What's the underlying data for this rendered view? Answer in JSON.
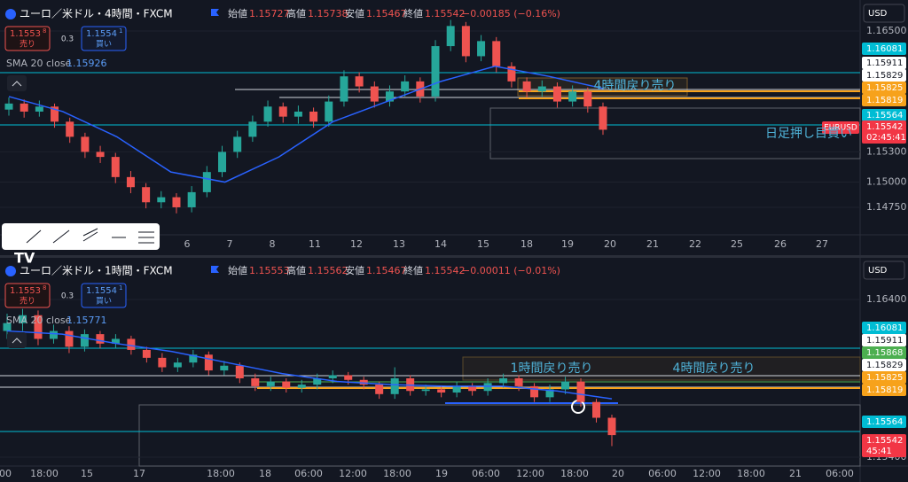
{
  "panels": [
    {
      "symbol_title": "ユーロ／米ドル・4時間・FXCM",
      "ohlc": {
        "open_label": "始値",
        "open": "1.15727",
        "high_label": "高値",
        "high": "1.15738",
        "low_label": "安値",
        "low": "1.15467",
        "close_label": "終値",
        "close": "1.15542",
        "change": "−0.00185 (−0.16%)"
      },
      "sell": {
        "price": "1.1553",
        "pip": "8",
        "label": "売り"
      },
      "spread": "0.3",
      "buy": {
        "price": "1.1554",
        "pip": "1",
        "label": "買い"
      },
      "sma": {
        "label": "SMA 20 close",
        "value": "1.15926"
      },
      "currency": "USD",
      "ylim": [
        1.14477,
        1.16808
      ],
      "price_ticks": [
        {
          "value": 1.165,
          "label": "1.16500"
        },
        {
          "value": 1.153,
          "label": "1.15300"
        },
        {
          "value": 1.15,
          "label": "1.15000"
        },
        {
          "value": 1.1475,
          "label": "1.14750"
        }
      ],
      "price_tags": [
        {
          "label": "1.16081",
          "color": "#00bcd4"
        },
        {
          "label": "1.15911",
          "color": "#ffffff"
        },
        {
          "label": "1.15829",
          "color": "#ffffff"
        },
        {
          "label": "1.15825",
          "color": "#f7a21b"
        },
        {
          "label": "1.15819",
          "color": "#f7a21b"
        },
        {
          "label": "1.15564",
          "color": "#00bcd4"
        }
      ],
      "last_price": "1.15542",
      "countdown": "02:45:41",
      "symbol_tag": "EURUSD",
      "time_labels": [
        "6",
        "7",
        "8",
        "11",
        "12",
        "13",
        "14",
        "15",
        "18",
        "19",
        "20",
        "21",
        "22",
        "25",
        "26",
        "27"
      ],
      "annotations": [
        "4時間戻り売り",
        "日足押し目買い"
      ],
      "candles": [
        [
          1.1572,
          1.1584,
          1.1566,
          1.1578
        ],
        [
          1.1578,
          1.1582,
          1.1564,
          1.157
        ],
        [
          1.157,
          1.1581,
          1.1565,
          1.1575
        ],
        [
          1.1575,
          1.1578,
          1.1554,
          1.156
        ],
        [
          1.156,
          1.1564,
          1.1539,
          1.1545
        ],
        [
          1.1545,
          1.1549,
          1.1524,
          1.153
        ],
        [
          1.153,
          1.1536,
          1.1519,
          1.1525
        ],
        [
          1.1525,
          1.1529,
          1.1499,
          1.1505
        ],
        [
          1.1505,
          1.1511,
          1.1489,
          1.1495
        ],
        [
          1.1495,
          1.1499,
          1.1474,
          1.148
        ],
        [
          1.148,
          1.1491,
          1.1474,
          1.1485
        ],
        [
          1.1485,
          1.1489,
          1.1469,
          1.1475
        ],
        [
          1.1475,
          1.1496,
          1.147,
          1.149
        ],
        [
          1.149,
          1.1516,
          1.1485,
          1.151
        ],
        [
          1.151,
          1.1536,
          1.1505,
          1.153
        ],
        [
          1.153,
          1.1551,
          1.1524,
          1.1545
        ],
        [
          1.1545,
          1.1566,
          1.154,
          1.156
        ],
        [
          1.156,
          1.1581,
          1.1555,
          1.1575
        ],
        [
          1.1575,
          1.1579,
          1.1559,
          1.1565
        ],
        [
          1.1565,
          1.1576,
          1.1558,
          1.157
        ],
        [
          1.157,
          1.1574,
          1.1554,
          1.156
        ],
        [
          1.156,
          1.1586,
          1.1555,
          1.158
        ],
        [
          1.158,
          1.1611,
          1.1575,
          1.1605
        ],
        [
          1.1605,
          1.1609,
          1.1589,
          1.1595
        ],
        [
          1.1595,
          1.16,
          1.1574,
          1.158
        ],
        [
          1.158,
          1.1596,
          1.1575,
          1.159
        ],
        [
          1.159,
          1.1606,
          1.1585,
          1.16
        ],
        [
          1.16,
          1.1604,
          1.1579,
          1.1585
        ],
        [
          1.1585,
          1.1641,
          1.158,
          1.1635
        ],
        [
          1.1635,
          1.1661,
          1.163,
          1.1655
        ],
        [
          1.1655,
          1.1659,
          1.1619,
          1.1625
        ],
        [
          1.1625,
          1.1646,
          1.162,
          1.164
        ],
        [
          1.164,
          1.1644,
          1.1609,
          1.1615
        ],
        [
          1.1615,
          1.1619,
          1.1594,
          1.16
        ],
        [
          1.16,
          1.1604,
          1.1584,
          1.159
        ],
        [
          1.159,
          1.1601,
          1.1585,
          1.1595
        ],
        [
          1.1595,
          1.1599,
          1.1574,
          1.158
        ],
        [
          1.158,
          1.1596,
          1.1575,
          1.159
        ],
        [
          1.159,
          1.1594,
          1.1569,
          1.1575
        ],
        [
          1.1575,
          1.1579,
          1.1547,
          1.1552
        ]
      ],
      "sma_line": [
        1.1585,
        1.157,
        1.1545,
        1.151,
        1.15,
        1.1525,
        1.156,
        1.158,
        1.16,
        1.1615,
        1.1605,
        1.1593
      ]
    },
    {
      "symbol_title": "ユーロ／米ドル・1時間・FXCM",
      "ohlc": {
        "open_label": "始値",
        "open": "1.15553",
        "high_label": "高値",
        "high": "1.15562",
        "low_label": "安値",
        "low": "1.15467",
        "close_label": "終値",
        "close": "1.15542",
        "change": "−0.00011 (−0.01%)"
      },
      "sell": {
        "price": "1.1553",
        "pip": "8",
        "label": "売り"
      },
      "spread": "0.3",
      "buy": {
        "price": "1.1554",
        "pip": "1",
        "label": "買い"
      },
      "sma": {
        "label": "SMA 20 close",
        "value": "1.15771"
      },
      "currency": "USD",
      "ylim": [
        1.15344,
        1.16658
      ],
      "price_ticks": [
        {
          "value": 1.164,
          "label": "1.16400"
        },
        {
          "value": 1.154,
          "label": "1.15400"
        }
      ],
      "price_tags": [
        {
          "label": "1.16081",
          "color": "#00bcd4"
        },
        {
          "label": "1.15911",
          "color": "#ffffff"
        },
        {
          "label": "1.15868",
          "color": "#4caf50"
        },
        {
          "label": "1.15829",
          "color": "#ffffff"
        },
        {
          "label": "1.15825",
          "color": "#f7a21b"
        },
        {
          "label": "1.15819",
          "color": "#f7a21b"
        },
        {
          "label": "1.15564",
          "color": "#00bcd4"
        }
      ],
      "last_price": "1.15542",
      "countdown": "45:41",
      "time_labels": [
        "00",
        "18:00",
        "15",
        "17",
        "18:00",
        "18",
        "06:00",
        "12:00",
        "18:00",
        "19",
        "06:00",
        "12:00",
        "18:00",
        "20",
        "06:00",
        "12:00",
        "18:00",
        "21",
        "06:00"
      ],
      "annotations": [
        "1時間戻り売り",
        "4時間戻り売り"
      ],
      "candles": [
        [
          1.162,
          1.1631,
          1.1615,
          1.1625
        ],
        [
          1.1625,
          1.1634,
          1.162,
          1.163
        ],
        [
          1.163,
          1.1633,
          1.1611,
          1.1615
        ],
        [
          1.1615,
          1.1624,
          1.1612,
          1.162
        ],
        [
          1.162,
          1.1623,
          1.1606,
          1.161
        ],
        [
          1.161,
          1.1621,
          1.1607,
          1.1618
        ],
        [
          1.1618,
          1.162,
          1.1609,
          1.1612
        ],
        [
          1.1612,
          1.1618,
          1.1609,
          1.1615
        ],
        [
          1.1615,
          1.1617,
          1.1605,
          1.1608
        ],
        [
          1.1608,
          1.161,
          1.16,
          1.1603
        ],
        [
          1.1603,
          1.1606,
          1.1594,
          1.1597
        ],
        [
          1.1597,
          1.1603,
          1.1594,
          1.16
        ],
        [
          1.16,
          1.1608,
          1.1597,
          1.1605
        ],
        [
          1.1605,
          1.1607,
          1.1592,
          1.1595
        ],
        [
          1.1595,
          1.1601,
          1.1592,
          1.1598
        ],
        [
          1.1598,
          1.16,
          1.1587,
          1.159
        ],
        [
          1.159,
          1.1593,
          1.1582,
          1.1585
        ],
        [
          1.1585,
          1.1591,
          1.1582,
          1.1588
        ],
        [
          1.1588,
          1.159,
          1.1581,
          1.1584
        ],
        [
          1.1584,
          1.1589,
          1.1581,
          1.1586
        ],
        [
          1.1586,
          1.1593,
          1.1583,
          1.159
        ],
        [
          1.159,
          1.1595,
          1.1587,
          1.1592
        ],
        [
          1.1592,
          1.1594,
          1.1586,
          1.1589
        ],
        [
          1.1589,
          1.1591,
          1.1583,
          1.1586
        ],
        [
          1.1586,
          1.1588,
          1.1577,
          1.158
        ],
        [
          1.158,
          1.1597,
          1.1577,
          1.159
        ],
        [
          1.159,
          1.1592,
          1.1579,
          1.1582
        ],
        [
          1.1582,
          1.1586,
          1.1579,
          1.1583
        ],
        [
          1.1583,
          1.1585,
          1.1578,
          1.1581
        ],
        [
          1.1581,
          1.1588,
          1.1578,
          1.1585
        ],
        [
          1.1585,
          1.1587,
          1.1579,
          1.1582
        ],
        [
          1.1582,
          1.159,
          1.1579,
          1.1587
        ],
        [
          1.1587,
          1.1593,
          1.1584,
          1.159
        ],
        [
          1.159,
          1.1592,
          1.1582,
          1.1585
        ],
        [
          1.1585,
          1.1587,
          1.1575,
          1.1578
        ],
        [
          1.1578,
          1.1586,
          1.1575,
          1.1583
        ],
        [
          1.1583,
          1.1591,
          1.158,
          1.1588
        ],
        [
          1.1588,
          1.159,
          1.1572,
          1.1575
        ],
        [
          1.1575,
          1.1577,
          1.1562,
          1.1565
        ],
        [
          1.1565,
          1.1567,
          1.1547,
          1.1554
        ]
      ],
      "sma_line": [
        1.162,
        1.1618,
        1.1612,
        1.1607,
        1.16,
        1.1593,
        1.1588,
        1.1586,
        1.1585,
        1.1585,
        1.1582,
        1.1577
      ]
    }
  ]
}
